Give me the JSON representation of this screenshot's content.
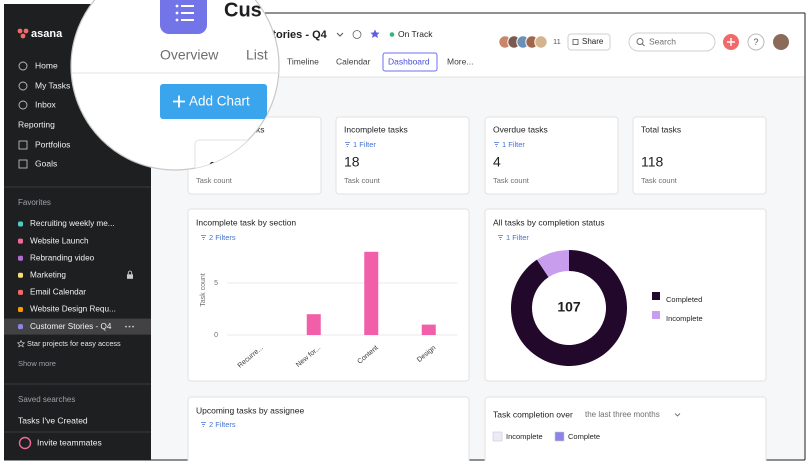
{
  "sidebar": {
    "logo": "asana",
    "nav": [
      "Home",
      "My Tasks",
      "Inbox"
    ],
    "reporting": "Reporting",
    "reporting_items": [
      "Portfolios",
      "Goals"
    ],
    "favorites_heading": "Favorites",
    "favorites": [
      {
        "label": "Recruiting weekly me...",
        "color": "#4ecbc4"
      },
      {
        "label": "Website Launch",
        "color": "#f06a99"
      },
      {
        "label": "Rebranding video",
        "color": "#b36bd4"
      },
      {
        "label": "Marketing",
        "color": "#f8df72",
        "locked": true
      },
      {
        "label": "Email Calendar",
        "color": "#f06a6a"
      },
      {
        "label": "Website Design Requ...",
        "color": "#fd9a00"
      },
      {
        "label": "Customer Stories - Q4",
        "color": "#8d84e8",
        "selected": true
      }
    ],
    "star_hint": "Star projects for easy access",
    "show_more": "Show more",
    "saved_heading": "Saved searches",
    "saved": [
      "Tasks I've Created"
    ],
    "invite": "Invite teammates"
  },
  "header": {
    "title_zoomed": "Cus",
    "title": "Stories - Q4",
    "status": "On Track",
    "member_count": 11,
    "share": "Share",
    "search": "Search",
    "help": "?",
    "tabs_zoomed": [
      "Overview",
      "List"
    ],
    "tabs": [
      "Timeline",
      "Calendar",
      "Dashboard",
      "More..."
    ],
    "active_tab": 2,
    "add_chart": "Add Chart"
  },
  "cards": [
    {
      "title": "ks",
      "caption": "Task count"
    },
    {
      "title": "Incomplete tasks",
      "filter": "1 Filter",
      "value": 18,
      "caption": "Task count"
    },
    {
      "title": "Overdue tasks",
      "filter": "1 Filter",
      "value": 4,
      "caption": "Task count"
    },
    {
      "title": "Total tasks",
      "value": 118,
      "caption": "Task count"
    }
  ],
  "bar_chart": {
    "type": "bar",
    "title": "Incomplete task by section",
    "filter": "2 Filters",
    "y_label": "Task count",
    "categories": [
      "Recurre...",
      "New for...",
      "Content",
      "Design"
    ],
    "values": [
      0,
      2,
      8,
      1
    ],
    "color": "#f15fa8",
    "ylim": [
      0,
      10
    ],
    "yticks": [
      0,
      5
    ],
    "grid": true
  },
  "donut_chart": {
    "type": "pie",
    "title": "All tasks by completion status",
    "filter": "1 Filter",
    "categories": [
      "Completed",
      "Incomplete"
    ],
    "values": [
      107,
      11
    ],
    "colors": [
      "#22082a",
      "#c99ded"
    ]
  },
  "upcoming": {
    "title": "Upcoming tasks by assignee",
    "filter": "2 Filters"
  },
  "completion": {
    "title": "Task completion over",
    "range": "the last three months",
    "legend": [
      {
        "name": "Incomplete",
        "color": "#ecebf5"
      },
      {
        "name": "Complete",
        "color": "#8d84e8"
      }
    ]
  }
}
